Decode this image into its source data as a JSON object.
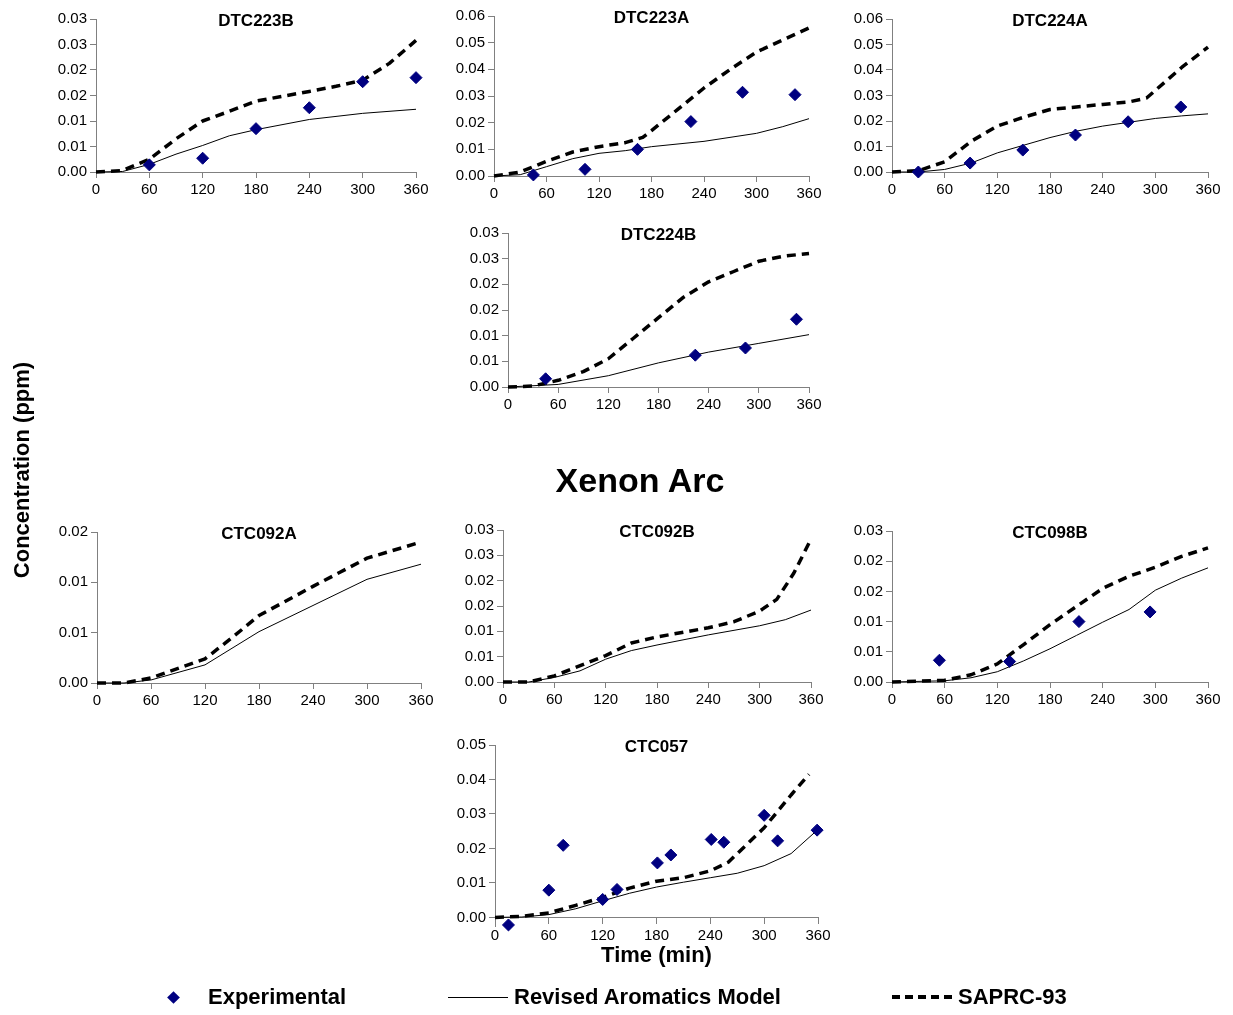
{
  "chart_data": [
    {
      "type": "line",
      "title": "DTC223B",
      "xlim": [
        0,
        360
      ],
      "xticks": [
        0,
        60,
        120,
        180,
        240,
        300,
        360
      ],
      "ylim": [
        0,
        0.03
      ],
      "yticks": [
        {
          "value": 0,
          "label": "0.00"
        },
        {
          "value": 0.005,
          "label": "0.01"
        },
        0.01,
        {
          "value": 0.015,
          "label": "0.02"
        },
        0.02,
        {
          "value": 0.025,
          "label": "0.03"
        },
        0.03
      ],
      "series": [
        {
          "type": "scatter",
          "marker": "diamond",
          "color": "#000080",
          "x": [
            60,
            120,
            180,
            240,
            300,
            360
          ],
          "values": [
            0.0014,
            0.0027,
            0.0085,
            0.0126,
            0.0177,
            0.0185
          ]
        },
        {
          "type": "line",
          "marker": "none",
          "line_style": "solid",
          "color": "#000000",
          "x": [
            0,
            30,
            60,
            90,
            120,
            150,
            180,
            240,
            300,
            360
          ],
          "values": [
            0,
            0.0001,
            0.0015,
            0.0035,
            0.0052,
            0.0071,
            0.0083,
            0.0103,
            0.0115,
            0.0123
          ]
        },
        {
          "type": "line",
          "marker": "none",
          "line_style": "dashed",
          "color": "#000000",
          "x": [
            0,
            30,
            60,
            90,
            120,
            150,
            180,
            240,
            270,
            300,
            330,
            360
          ],
          "values": [
            0,
            0.0003,
            0.0025,
            0.0065,
            0.01,
            0.0119,
            0.0139,
            0.0158,
            0.0168,
            0.018,
            0.0213,
            0.0258
          ]
        }
      ]
    },
    {
      "type": "line",
      "title": "DTC223A",
      "xlim": [
        0,
        360
      ],
      "xticks": [
        0,
        60,
        120,
        180,
        240,
        300,
        360
      ],
      "ylim": [
        0,
        0.06
      ],
      "yticks": [
        {
          "value": 0,
          "label": "0.00"
        },
        0.01,
        0.02,
        0.03,
        0.04,
        0.05,
        0.06
      ],
      "series": [
        {
          "type": "scatter",
          "marker": "diamond",
          "color": "#000080",
          "x": [
            45,
            104,
            164,
            225,
            284,
            344
          ],
          "values": [
            0.0004,
            0.0025,
            0.01,
            0.0204,
            0.0314,
            0.0305
          ]
        },
        {
          "type": "line",
          "marker": "none",
          "line_style": "solid",
          "color": "#000000",
          "x": [
            0,
            30,
            60,
            90,
            120,
            150,
            180,
            240,
            300,
            330,
            360
          ],
          "values": [
            0,
            0.0005,
            0.0035,
            0.0065,
            0.0085,
            0.0095,
            0.011,
            0.013,
            0.016,
            0.0185,
            0.0215
          ]
        },
        {
          "type": "line",
          "marker": "none",
          "line_style": "dashed",
          "color": "#000000",
          "x": [
            0,
            30,
            60,
            90,
            120,
            150,
            170,
            180,
            210,
            240,
            270,
            300,
            330,
            360
          ],
          "values": [
            0,
            0.0015,
            0.0055,
            0.009,
            0.011,
            0.0125,
            0.0145,
            0.017,
            0.025,
            0.033,
            0.04,
            0.0465,
            0.051,
            0.0555
          ]
        }
      ]
    },
    {
      "type": "line",
      "title": "DTC224A",
      "xlim": [
        0,
        360
      ],
      "xticks": [
        0,
        60,
        120,
        180,
        240,
        300,
        360
      ],
      "ylim": [
        0,
        0.06
      ],
      "yticks": [
        {
          "value": 0,
          "label": "0.00"
        },
        0.01,
        0.02,
        0.03,
        0.04,
        0.05,
        0.06
      ],
      "series": [
        {
          "type": "scatter",
          "marker": "diamond",
          "color": "#000080",
          "x": [
            30,
            89,
            149,
            209,
            269,
            329
          ],
          "values": [
            0,
            0.0035,
            0.0086,
            0.0145,
            0.0197,
            0.0255
          ]
        },
        {
          "type": "line",
          "marker": "none",
          "line_style": "solid",
          "color": "#000000",
          "x": [
            0,
            30,
            60,
            90,
            120,
            150,
            180,
            210,
            240,
            270,
            300,
            330,
            360
          ],
          "values": [
            0,
            0,
            0.001,
            0.0035,
            0.0075,
            0.0105,
            0.0135,
            0.016,
            0.018,
            0.0195,
            0.021,
            0.022,
            0.0228
          ]
        },
        {
          "type": "line",
          "marker": "none",
          "line_style": "dashed",
          "color": "#000000",
          "x": [
            0,
            30,
            60,
            90,
            120,
            150,
            180,
            210,
            240,
            270,
            290,
            300,
            330,
            360
          ],
          "values": [
            0,
            0.0005,
            0.004,
            0.012,
            0.018,
            0.0215,
            0.0245,
            0.0255,
            0.0265,
            0.0275,
            0.029,
            0.032,
            0.041,
            0.049
          ]
        }
      ]
    },
    {
      "type": "line",
      "title": "DTC224B",
      "xlim": [
        0,
        360
      ],
      "xticks": [
        0,
        60,
        120,
        180,
        240,
        300,
        360
      ],
      "ylim": [
        0,
        0.03
      ],
      "yticks": [
        {
          "value": 0,
          "label": "0.00"
        },
        {
          "value": 0.005,
          "label": "0.01"
        },
        0.01,
        {
          "value": 0.015,
          "label": "0.02"
        },
        0.02,
        {
          "value": 0.025,
          "label": "0.03"
        },
        0.03
      ],
      "series": [
        {
          "type": "scatter",
          "marker": "diamond",
          "color": "#000080",
          "x": [
            45,
            224,
            284,
            345
          ],
          "values": [
            0.0016,
            0.0062,
            0.0076,
            0.0132
          ]
        },
        {
          "type": "line",
          "marker": "none",
          "line_style": "solid",
          "color": "#000000",
          "x": [
            0,
            60,
            120,
            180,
            240,
            300,
            360
          ],
          "values": [
            0,
            0.0005,
            0.0022,
            0.0047,
            0.0068,
            0.0085,
            0.0102
          ]
        },
        {
          "type": "line",
          "marker": "none",
          "line_style": "dashed",
          "color": "#000000",
          "x": [
            0,
            30,
            60,
            90,
            120,
            150,
            180,
            210,
            240,
            270,
            300,
            330,
            360
          ],
          "values": [
            0,
            0.0002,
            0.0013,
            0.003,
            0.0055,
            0.0095,
            0.0135,
            0.0175,
            0.0205,
            0.0225,
            0.0245,
            0.0255,
            0.026
          ]
        }
      ]
    },
    {
      "type": "line",
      "title": "CTC092A",
      "ylabel": "Concentration (ppm)",
      "xlim": [
        0,
        360
      ],
      "xticks": [
        0,
        60,
        120,
        180,
        240,
        300,
        360
      ],
      "ylim": [
        0,
        0.015
      ],
      "yticks": [
        {
          "value": 0,
          "label": "0.00"
        },
        {
          "value": 0.005,
          "label": "0.01"
        },
        0.01,
        {
          "value": 0.015,
          "label": "0.02"
        }
      ],
      "series": [
        {
          "type": "line",
          "marker": "none",
          "line_style": "solid",
          "color": "#000000",
          "x": [
            0,
            30,
            60,
            120,
            180,
            240,
            270,
            300,
            360
          ],
          "values": [
            0,
            0,
            0.0003,
            0.0018,
            0.0051,
            0.0077,
            0.009,
            0.0103,
            0.0118
          ]
        },
        {
          "type": "line",
          "marker": "none",
          "line_style": "dashed",
          "color": "#000000",
          "x": [
            0,
            30,
            60,
            120,
            150,
            180,
            240,
            270,
            300,
            360
          ],
          "values": [
            0,
            0,
            0.0005,
            0.0024,
            0.0045,
            0.0067,
            0.0096,
            0.011,
            0.0124,
            0.014
          ]
        }
      ]
    },
    {
      "type": "line",
      "title": "CTC092B",
      "annotations": [
        "Xenon Arc"
      ],
      "xlim": [
        0,
        360
      ],
      "xticks": [
        0,
        60,
        120,
        180,
        240,
        300,
        360
      ],
      "ylim": [
        0,
        0.03
      ],
      "yticks": [
        {
          "value": 0,
          "label": "0.00"
        },
        {
          "value": 0.005,
          "label": "0.01"
        },
        0.01,
        {
          "value": 0.015,
          "label": "0.02"
        },
        0.02,
        {
          "value": 0.025,
          "label": "0.03"
        },
        0.03
      ],
      "series": [
        {
          "type": "line",
          "marker": "none",
          "line_style": "solid",
          "color": "#000000",
          "x": [
            0,
            30,
            60,
            90,
            120,
            150,
            180,
            240,
            300,
            330,
            360
          ],
          "values": [
            0,
            0,
            0.0009,
            0.0022,
            0.0045,
            0.0062,
            0.0073,
            0.0093,
            0.0111,
            0.0123,
            0.0142
          ]
        },
        {
          "type": "line",
          "marker": "none",
          "line_style": "dashed",
          "color": "#000000",
          "x": [
            0,
            30,
            60,
            120,
            150,
            180,
            240,
            270,
            300,
            320,
            340,
            360
          ],
          "values": [
            0,
            0,
            0.0012,
            0.0052,
            0.0077,
            0.0089,
            0.0107,
            0.0119,
            0.014,
            0.0163,
            0.0215,
            0.0282
          ]
        }
      ]
    },
    {
      "type": "line",
      "title": "CTC098B",
      "xlim": [
        0,
        360
      ],
      "xticks": [
        0,
        60,
        120,
        180,
        240,
        300,
        360
      ],
      "ylim": [
        0,
        0.025
      ],
      "yticks": [
        {
          "value": 0,
          "label": "0.00"
        },
        {
          "value": 0.005,
          "label": "0.01"
        },
        0.01,
        {
          "value": 0.015,
          "label": "0.02"
        },
        0.02,
        {
          "value": 0.025,
          "label": "0.03"
        }
      ],
      "series": [
        {
          "type": "scatter",
          "marker": "diamond",
          "color": "#000080",
          "x": [
            54,
            134,
            213,
            294
          ],
          "values": [
            0.0036,
            0.0034,
            0.01,
            0.0116
          ]
        },
        {
          "type": "line",
          "marker": "none",
          "line_style": "solid",
          "color": "#000000",
          "x": [
            0,
            60,
            90,
            120,
            150,
            180,
            210,
            240,
            270,
            300,
            330,
            360
          ],
          "values": [
            0,
            0.0002,
            0.0007,
            0.0017,
            0.0035,
            0.0055,
            0.0077,
            0.0099,
            0.012,
            0.0152,
            0.0172,
            0.0189
          ]
        },
        {
          "type": "line",
          "marker": "none",
          "line_style": "dashed",
          "color": "#000000",
          "x": [
            0,
            60,
            90,
            120,
            150,
            180,
            210,
            240,
            270,
            300,
            330,
            360
          ],
          "values": [
            0,
            0.0003,
            0.0012,
            0.003,
            0.0062,
            0.0095,
            0.0125,
            0.0155,
            0.0175,
            0.019,
            0.0208,
            0.0222
          ]
        }
      ]
    },
    {
      "type": "line",
      "title": "CTC057",
      "xlabel": "Time (min)",
      "legend": "bottom",
      "xlim": [
        0,
        360
      ],
      "xticks": [
        0,
        60,
        120,
        180,
        240,
        300,
        360
      ],
      "ylim": [
        -0.0025,
        0.05
      ],
      "yticks": [
        {
          "value": 0,
          "label": "0.00"
        },
        0.01,
        0.02,
        0.03,
        0.04,
        0.05
      ],
      "series": [
        {
          "type": "scatter",
          "name": "Experimental",
          "marker": "diamond",
          "color": "#000080",
          "x": [
            15,
            60,
            76,
            120,
            136,
            181,
            196,
            241,
            255,
            300,
            315,
            359
          ],
          "values": [
            -0.0022,
            0.0079,
            0.0209,
            0.0052,
            0.0081,
            0.0158,
            0.0181,
            0.0226,
            0.0218,
            0.0296,
            0.0222,
            0.0253
          ]
        },
        {
          "type": "line",
          "name": "Revised Aromatics Model",
          "marker": "none",
          "line_style": "solid",
          "color": "#000000",
          "x": [
            0,
            30,
            60,
            90,
            120,
            150,
            180,
            210,
            240,
            270,
            300,
            330,
            360
          ],
          "values": [
            0,
            0.0001,
            0.0008,
            0.0025,
            0.0048,
            0.007,
            0.0088,
            0.0102,
            0.0115,
            0.0128,
            0.015,
            0.0185,
            0.0255
          ]
        },
        {
          "type": "line",
          "name": "SAPRC-93",
          "marker": "none",
          "line_style": "dashed",
          "color": "#000000",
          "x": [
            0,
            30,
            60,
            90,
            120,
            150,
            180,
            210,
            240,
            260,
            280,
            300,
            330,
            350
          ],
          "values": [
            0,
            0.0003,
            0.0013,
            0.0035,
            0.0058,
            0.0085,
            0.0105,
            0.0115,
            0.0135,
            0.016,
            0.021,
            0.026,
            0.0355,
            0.0415
          ]
        }
      ]
    }
  ]
}
